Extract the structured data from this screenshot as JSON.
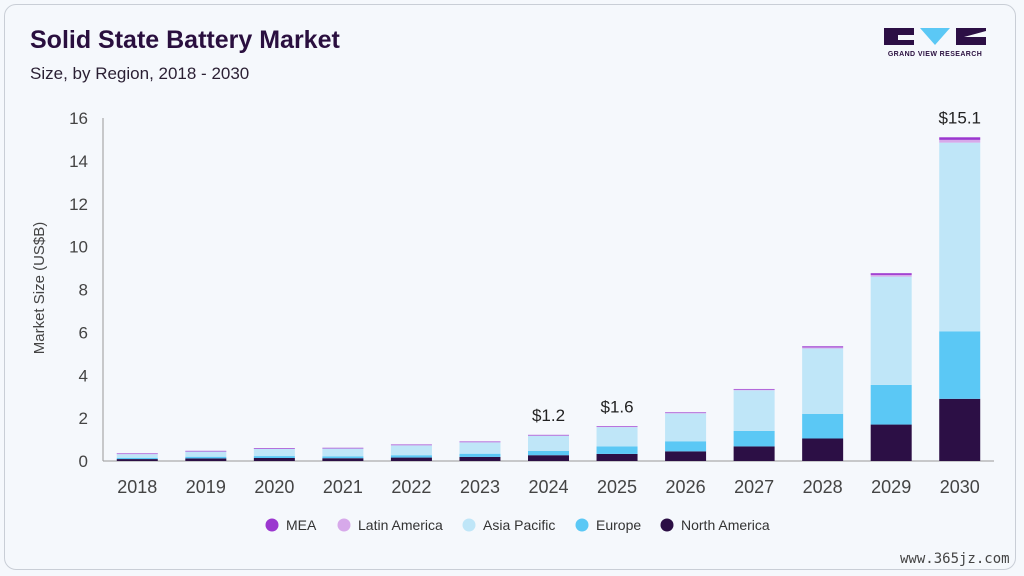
{
  "header": {
    "title": "Solid State Battery Market",
    "subtitle": "Size, by Region, 2018 - 2030"
  },
  "logo": {
    "text": "GRAND VIEW RESEARCH"
  },
  "watermark": "www.365jz.com",
  "chart_data": {
    "type": "bar",
    "stacked": true,
    "title": "Solid State Battery Market",
    "subtitle": "Size, by Region, 2018 - 2030",
    "xlabel": "",
    "ylabel": "Market Size (US$B)",
    "ylim": [
      0,
      16
    ],
    "yticks": [
      0,
      2,
      4,
      6,
      8,
      10,
      12,
      14,
      16
    ],
    "categories": [
      "2018",
      "2019",
      "2020",
      "2021",
      "2022",
      "2023",
      "2024",
      "2025",
      "2026",
      "2027",
      "2028",
      "2029",
      "2030"
    ],
    "series": [
      {
        "name": "North America",
        "color": "#2c0f45",
        "values": [
          0.09,
          0.12,
          0.14,
          0.13,
          0.16,
          0.19,
          0.27,
          0.33,
          0.45,
          0.68,
          1.05,
          1.7,
          2.9
        ]
      },
      {
        "name": "Europe",
        "color": "#5bc8f5",
        "values": [
          0.06,
          0.08,
          0.09,
          0.09,
          0.11,
          0.15,
          0.2,
          0.35,
          0.47,
          0.72,
          1.15,
          1.85,
          3.15
        ]
      },
      {
        "name": "Asia Pacific",
        "color": "#bfe6f8",
        "values": [
          0.17,
          0.24,
          0.34,
          0.36,
          0.46,
          0.53,
          0.71,
          0.9,
          1.3,
          1.9,
          3.05,
          5.05,
          8.8
        ]
      },
      {
        "name": "Latin America",
        "color": "#d7a9ea",
        "values": [
          0.005,
          0.006,
          0.008,
          0.008,
          0.01,
          0.01,
          0.012,
          0.015,
          0.02,
          0.03,
          0.05,
          0.08,
          0.13
        ]
      },
      {
        "name": "MEA",
        "color": "#9b37cf",
        "values": [
          0.005,
          0.006,
          0.008,
          0.008,
          0.01,
          0.01,
          0.012,
          0.015,
          0.02,
          0.03,
          0.05,
          0.08,
          0.12
        ]
      }
    ],
    "legend_order": [
      "MEA",
      "Latin America",
      "Asia Pacific",
      "Europe",
      "North America"
    ],
    "legend_position": "bottom",
    "annotations": [
      {
        "category": "2024",
        "text": "$1.2"
      },
      {
        "category": "2025",
        "text": "$1.6"
      },
      {
        "category": "2030",
        "text": "$15.1"
      }
    ]
  }
}
